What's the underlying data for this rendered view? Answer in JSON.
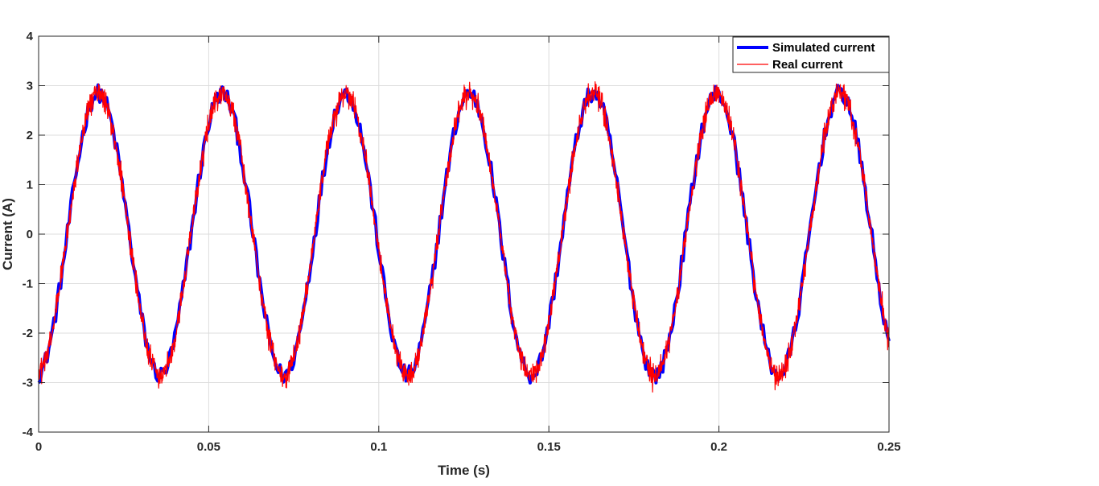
{
  "chart_data": {
    "type": "line",
    "title": "",
    "xlabel": "Time (s)",
    "ylabel": "Current (A)",
    "xlim": [
      0,
      0.25
    ],
    "ylim": [
      -4,
      4
    ],
    "xticks": [
      0,
      0.05,
      0.1,
      0.15,
      0.2,
      0.25
    ],
    "xtick_labels": [
      "0",
      "0.05",
      "0.1",
      "0.15",
      "0.2",
      "0.25"
    ],
    "yticks": [
      -4,
      -3,
      -2,
      -1,
      0,
      1,
      2,
      3,
      4
    ],
    "ytick_labels": [
      "-4",
      "-3",
      "-2",
      "-1",
      "0",
      "1",
      "2",
      "3",
      "4"
    ],
    "grid": true,
    "legend_position": "top-right",
    "series": [
      {
        "name": "Simulated current",
        "color": "#0000ff",
        "model": {
          "form": "sine",
          "amplitude_A": 2.85,
          "frequency_Hz": 27.5,
          "phase_rad": -1.46,
          "offset_A": 0.0,
          "sample_step_s": 0.0005,
          "ripple_A": 0.18,
          "x_start_s": 0.0,
          "x_end_s": 0.25
        }
      },
      {
        "name": "Real current",
        "color": "#ff0000",
        "model": {
          "form": "sine",
          "amplitude_A": 2.85,
          "frequency_Hz": 27.5,
          "phase_rad": -1.46,
          "offset_A": 0.0,
          "sample_step_s": 0.0001,
          "noise_A": 0.3,
          "x_start_s": 0.0,
          "x_end_s": 0.25
        }
      }
    ]
  }
}
